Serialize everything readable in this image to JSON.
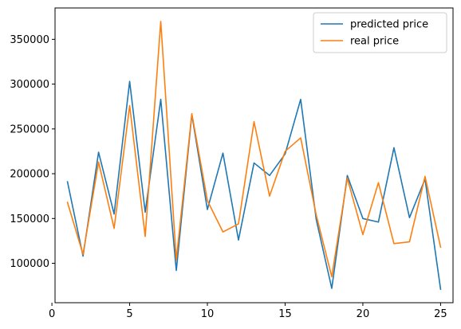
{
  "chart_data": {
    "type": "line",
    "title": "",
    "xlabel": "",
    "ylabel": "",
    "x": [
      1,
      2,
      3,
      4,
      5,
      6,
      7,
      8,
      9,
      10,
      11,
      12,
      13,
      14,
      15,
      16,
      17,
      18,
      19,
      20,
      21,
      22,
      23,
      24,
      25
    ],
    "xlim": [
      0.2,
      25.8
    ],
    "ylim": [
      56000,
      385000
    ],
    "xticks": [
      0,
      5,
      10,
      15,
      20,
      25
    ],
    "yticks": [
      100000,
      150000,
      200000,
      250000,
      300000,
      350000
    ],
    "xtick_labels": [
      "0",
      "5",
      "10",
      "15",
      "20",
      "25"
    ],
    "ytick_labels": [
      "100000",
      "150000",
      "200000",
      "250000",
      "300000",
      "350000"
    ],
    "grid": false,
    "legend_position": "upper-right",
    "series": [
      {
        "name": "predicted price",
        "color": "#1f77b4",
        "values": [
          191000,
          108000,
          224000,
          155000,
          303000,
          157000,
          283000,
          92000,
          266000,
          160000,
          223000,
          126000,
          212000,
          198000,
          222000,
          283000,
          149000,
          72000,
          198000,
          150000,
          146000,
          229000,
          151000,
          194000,
          71000
        ]
      },
      {
        "name": "real price",
        "color": "#ff7f0e",
        "values": [
          168000,
          110000,
          213000,
          139000,
          276000,
          130000,
          370000,
          104000,
          267000,
          170000,
          135000,
          144000,
          258000,
          175000,
          225000,
          240000,
          154000,
          85000,
          195000,
          132000,
          190000,
          122000,
          124000,
          197000,
          118000
        ]
      }
    ]
  }
}
